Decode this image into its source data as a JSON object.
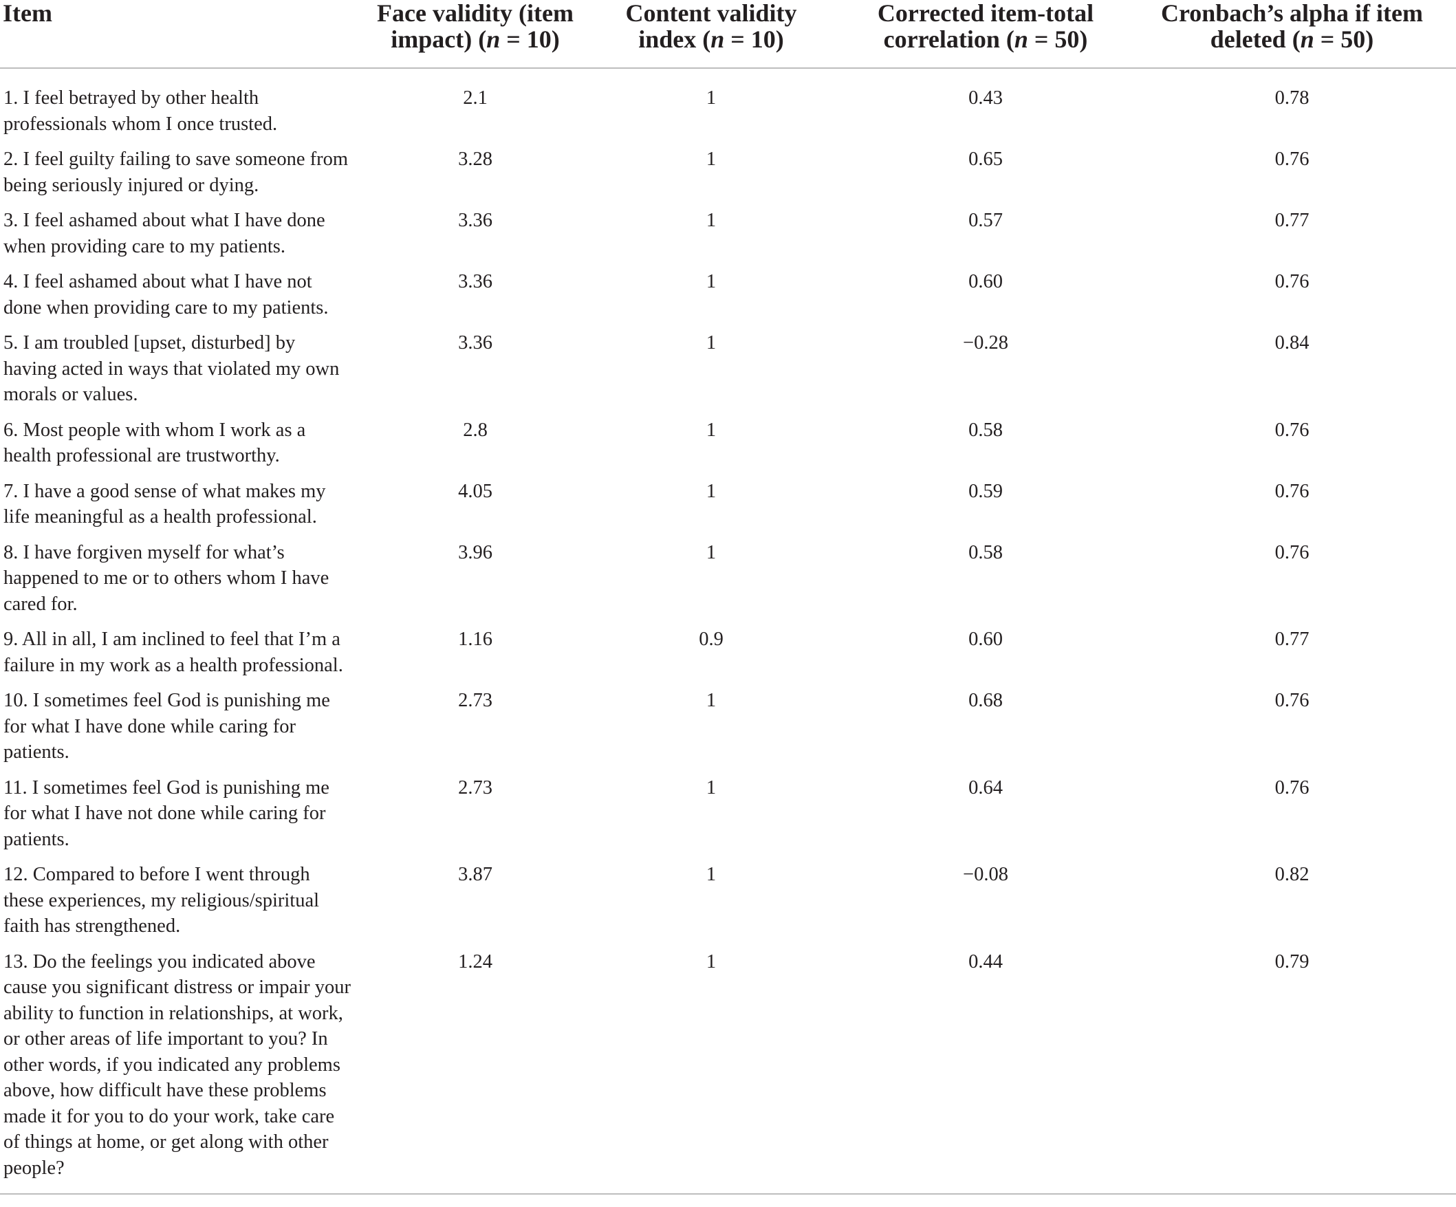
{
  "headers": {
    "item": "Item",
    "face_line1": "Face validity (item",
    "face_line2_pre": "impact) (",
    "face_n": "n",
    "face_line2_post": " = 10)",
    "cvi_line1": "Content validity",
    "cvi_line2_pre": "index (",
    "cvi_n": "n",
    "cvi_line2_post": " = 10)",
    "corr_line1": "Corrected item-total",
    "corr_line2_pre": "correlation (",
    "corr_n": "n",
    "corr_line2_post": " = 50)",
    "alpha_line1": "Cronbach’s alpha if item",
    "alpha_line2_pre": "deleted (",
    "alpha_n": "n",
    "alpha_line2_post": " = 50)"
  },
  "rows": [
    {
      "item": "1. I feel betrayed by other health professionals whom I once trusted.",
      "face": "2.1",
      "cvi": "1",
      "corr": "0.43",
      "alpha": "0.78"
    },
    {
      "item": "2. I feel guilty failing to save someone from being seriously injured or dying.",
      "face": "3.28",
      "cvi": "1",
      "corr": "0.65",
      "alpha": "0.76"
    },
    {
      "item": "3. I feel ashamed about what I have done when providing care to my patients.",
      "face": "3.36",
      "cvi": "1",
      "corr": "0.57",
      "alpha": "0.77"
    },
    {
      "item": "4. I feel ashamed about what I have not done when providing care to my patients.",
      "face": "3.36",
      "cvi": "1",
      "corr": "0.60",
      "alpha": "0.76"
    },
    {
      "item": "5. I am troubled [upset, disturbed] by having acted in ways that violated my own morals or values.",
      "face": "3.36",
      "cvi": "1",
      "corr": "−0.28",
      "alpha": "0.84"
    },
    {
      "item": "6. Most people with whom I work as a health professional are trustworthy.",
      "face": "2.8",
      "cvi": "1",
      "corr": "0.58",
      "alpha": "0.76"
    },
    {
      "item": "7. I have a good sense of what makes my life meaningful as a health professional.",
      "face": "4.05",
      "cvi": "1",
      "corr": "0.59",
      "alpha": "0.76"
    },
    {
      "item": "8. I have forgiven myself for what’s happened to me or to others whom I have cared for.",
      "face": "3.96",
      "cvi": "1",
      "corr": "0.58",
      "alpha": "0.76"
    },
    {
      "item": "9. All in all, I am inclined to feel that I’m a failure in my work as a health professional.",
      "face": "1.16",
      "cvi": "0.9",
      "corr": "0.60",
      "alpha": "0.77"
    },
    {
      "item": "10. I sometimes feel God is punishing me for what I have done while caring for patients.",
      "face": "2.73",
      "cvi": "1",
      "corr": "0.68",
      "alpha": "0.76"
    },
    {
      "item": "11. I sometimes feel God is punishing me for what I have not done while caring for patients.",
      "face": "2.73",
      "cvi": "1",
      "corr": "0.64",
      "alpha": "0.76"
    },
    {
      "item": "12. Compared to before I went through these experiences, my religious/spiritual faith has strengthened.",
      "face": "3.87",
      "cvi": "1",
      "corr": "−0.08",
      "alpha": "0.82"
    },
    {
      "item": "13. Do the feelings you indicated above cause you significant distress or impair your ability to function in relationships, at work, or other areas of life important to you? In other words, if you indicated any problems above, how difficult have these problems made it for you to do your work, take care of things at home, or get along with other people?",
      "face": "1.24",
      "cvi": "1",
      "corr": "0.44",
      "alpha": "0.79"
    }
  ]
}
